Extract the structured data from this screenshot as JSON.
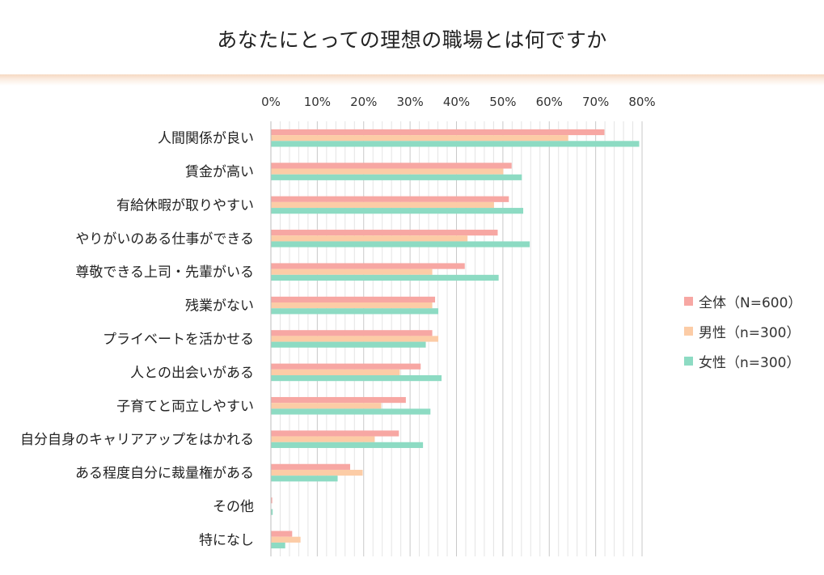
{
  "title": "あなたにとっての理想の職場とは何ですか",
  "colors": {
    "total": "#f7a7a3",
    "male": "#fccca6",
    "female": "#8ddbc3"
  },
  "chart_data": {
    "type": "bar",
    "orientation": "horizontal",
    "title": "あなたにとっての理想の職場とは何ですか",
    "xlim": [
      0,
      80
    ],
    "xticks": [
      0,
      10,
      20,
      30,
      40,
      50,
      60,
      70,
      80
    ],
    "xtick_labels": [
      "0%",
      "10%",
      "20%",
      "30%",
      "40%",
      "50%",
      "60%",
      "70%",
      "80%"
    ],
    "categories": [
      "人間関係が良い",
      "賃金が高い",
      "有給休暇が取りやすい",
      "やりがいのある仕事ができる",
      "尊敬できる上司・先輩がいる",
      "残業がない",
      "プライベートを活かせる",
      "人との出会いがある",
      "子育てと両立しやすい",
      "自分自身のキャリアアップをはかれる",
      "ある程度自分に裁量権がある",
      "その他",
      "特になし"
    ],
    "series": [
      {
        "name": "全体（N=600）",
        "key": "total",
        "values": [
          71.8,
          51.8,
          51.2,
          48.8,
          41.7,
          35.3,
          34.7,
          32.2,
          29.0,
          27.5,
          17.0,
          0.2,
          4.5
        ]
      },
      {
        "name": "男性（n=300）",
        "key": "male",
        "values": [
          64.0,
          50.0,
          48.0,
          42.3,
          34.7,
          34.7,
          36.0,
          27.7,
          23.7,
          22.3,
          19.7,
          0.0,
          6.3
        ]
      },
      {
        "name": "女性（n=300）",
        "key": "female",
        "values": [
          79.3,
          54.0,
          54.3,
          55.7,
          49.0,
          36.0,
          33.3,
          36.7,
          34.3,
          32.7,
          14.3,
          0.3,
          3.0
        ]
      }
    ],
    "legend_position": "right"
  }
}
